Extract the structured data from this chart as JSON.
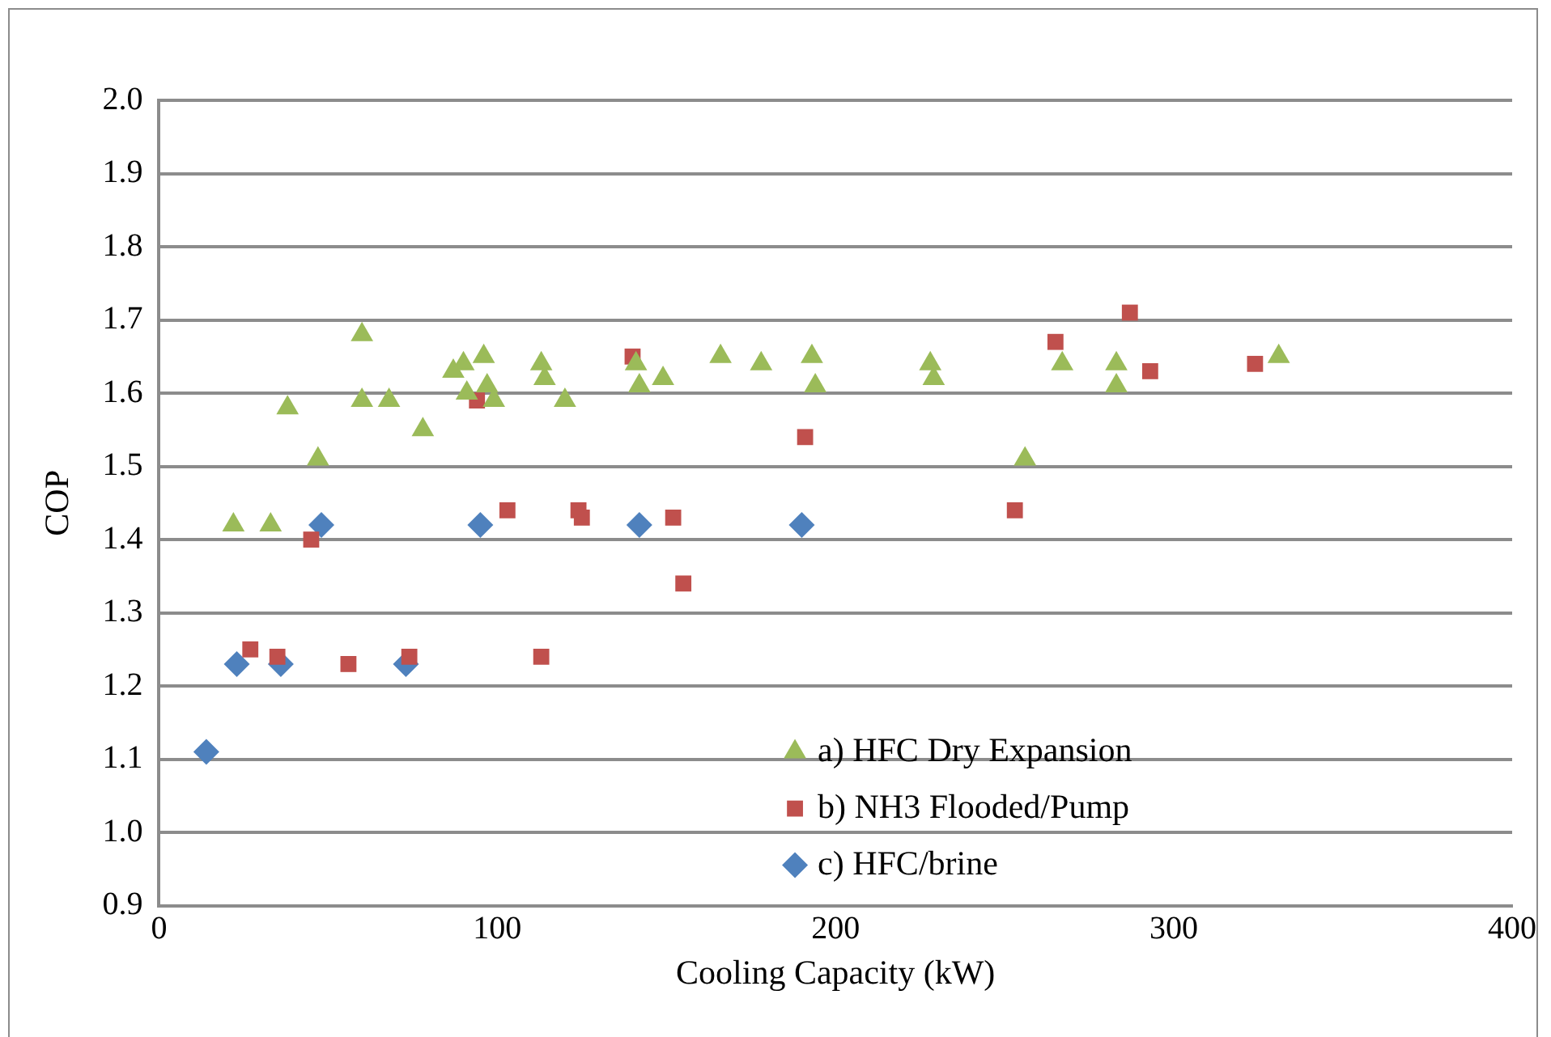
{
  "chart_data": {
    "type": "scatter",
    "xlabel": "Cooling Capacity (kW)",
    "ylabel": "COP",
    "xlim": [
      0,
      400
    ],
    "xticks": [
      0,
      100,
      200,
      300,
      400
    ],
    "ylim": [
      0.9,
      2.0
    ],
    "yticks": [
      {
        "value": 0.9,
        "label": "0.9"
      },
      {
        "value": 1.0,
        "label": "1.0"
      },
      {
        "value": 1.1,
        "label": "1.1"
      },
      {
        "value": 1.2,
        "label": "1.2"
      },
      {
        "value": 1.3,
        "label": "1.3"
      },
      {
        "value": 1.4,
        "label": "1.4"
      },
      {
        "value": 1.5,
        "label": "1.5"
      },
      {
        "value": 1.6,
        "label": "1.6"
      },
      {
        "value": 1.7,
        "label": "1.7"
      },
      {
        "value": 1.8,
        "label": "1.8"
      },
      {
        "value": 1.9,
        "label": "1.9"
      },
      {
        "value": 2.0,
        "label": "2.0"
      }
    ],
    "grid": "y",
    "legend": "bottom right",
    "series": [
      {
        "name": "a) HFC Dry Expansion",
        "color": "#9bbb59",
        "marker": "triangle",
        "x": [
          22,
          33,
          38,
          47,
          60,
          60,
          68,
          78,
          87,
          90,
          91,
          96,
          97,
          99,
          113,
          114,
          120,
          141,
          142,
          149,
          166,
          178,
          193,
          194,
          228,
          229,
          256,
          267,
          283,
          283,
          331
        ],
        "values": [
          1.42,
          1.42,
          1.58,
          1.51,
          1.68,
          1.59,
          1.59,
          1.55,
          1.63,
          1.64,
          1.6,
          1.65,
          1.61,
          1.59,
          1.64,
          1.62,
          1.59,
          1.64,
          1.61,
          1.62,
          1.65,
          1.64,
          1.65,
          1.61,
          1.64,
          1.62,
          1.51,
          1.64,
          1.64,
          1.61,
          1.65
        ]
      },
      {
        "name": "b) NH3 Flooded/Pump",
        "color": "#c0504d",
        "marker": "square",
        "x": [
          27,
          35,
          45,
          56,
          74,
          94,
          103,
          113,
          124,
          125,
          140,
          152,
          155,
          191,
          253,
          265,
          287,
          293,
          324
        ],
        "values": [
          1.25,
          1.24,
          1.4,
          1.23,
          1.24,
          1.59,
          1.44,
          1.24,
          1.44,
          1.43,
          1.65,
          1.43,
          1.34,
          1.54,
          1.44,
          1.67,
          1.71,
          1.63,
          1.64
        ]
      },
      {
        "name": "c) HFC/brine",
        "color": "#4f81bd",
        "marker": "diamond",
        "x": [
          14,
          23,
          36,
          48,
          73,
          95,
          142,
          190
        ],
        "values": [
          1.11,
          1.23,
          1.23,
          1.42,
          1.23,
          1.42,
          1.42,
          1.42
        ]
      }
    ]
  }
}
